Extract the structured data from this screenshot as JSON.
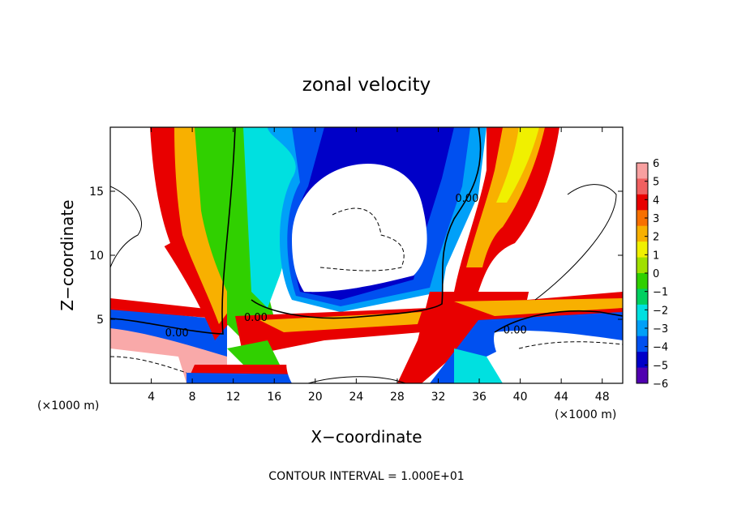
{
  "chart_data": {
    "type": "heatmap",
    "title": "zonal velocity",
    "xlabel": "X−coordinate",
    "ylabel": "Z−coordinate",
    "x_unit_left": "(×1000 m)",
    "x_unit_right": "(×1000 m)",
    "footer": "CONTOUR INTERVAL = 1.000E+01",
    "xlim": [
      0,
      50
    ],
    "ylim": [
      0,
      20
    ],
    "x_ticks": [
      4,
      8,
      12,
      16,
      20,
      24,
      28,
      32,
      36,
      40,
      44,
      48
    ],
    "y_ticks": [
      5,
      10,
      15
    ],
    "colorbar": {
      "ticks": [
        6,
        5,
        4,
        3,
        2,
        1,
        0,
        -1,
        -2,
        -3,
        -4,
        -5,
        -6
      ],
      "tick_labels": [
        "6",
        "5",
        "4",
        "3",
        "2",
        "1",
        "0",
        "−1",
        "−2",
        "−3",
        "−4",
        "−5",
        "−6"
      ],
      "colors": [
        "#f8a0a0",
        "#f06060",
        "#e80000",
        "#f87000",
        "#f8b000",
        "#f0f000",
        "#a0e000",
        "#30d000",
        "#00d060",
        "#00e0e0",
        "#00a0f8",
        "#0050f0",
        "#0000c8",
        "#5000b0"
      ]
    },
    "contour_labels": [
      {
        "text": "0.00",
        "x": 6.5,
        "z": 4.0
      },
      {
        "text": "0.00",
        "x": 14.2,
        "z": 5.2
      },
      {
        "text": "0.00",
        "x": 34.8,
        "z": 14.5
      },
      {
        "text": "0.00",
        "x": 39.5,
        "z": 4.2
      }
    ]
  }
}
